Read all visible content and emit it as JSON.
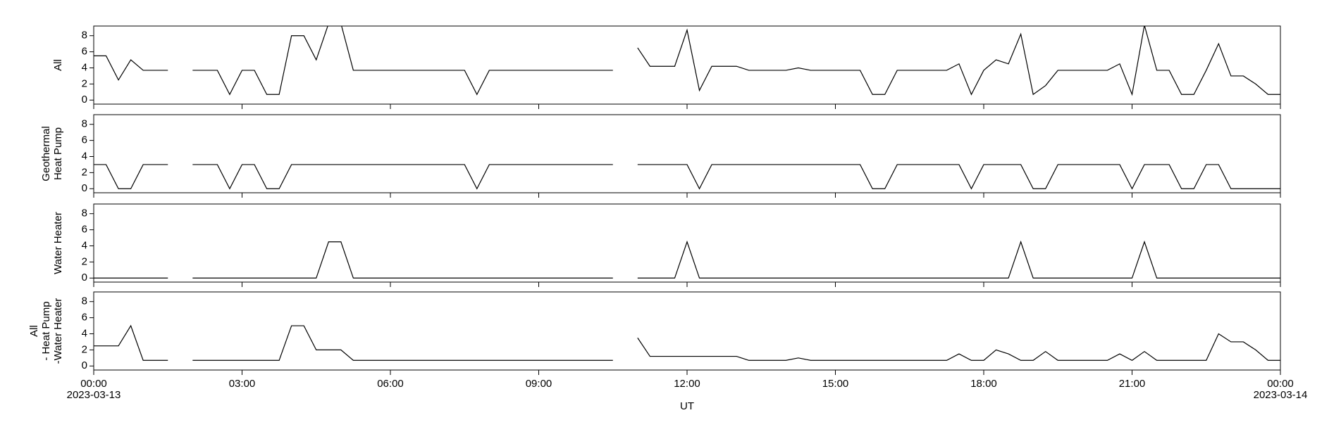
{
  "chart_data": {
    "type": "line",
    "subplots": true,
    "x": [
      0,
      0.25,
      0.5,
      0.75,
      1,
      1.25,
      1.5,
      1.75,
      2,
      2.25,
      2.5,
      2.75,
      3,
      3.25,
      3.5,
      3.75,
      4,
      4.25,
      4.5,
      4.75,
      5,
      5.25,
      5.5,
      5.75,
      6,
      6.25,
      6.5,
      6.75,
      7,
      7.25,
      7.5,
      7.75,
      8,
      8.25,
      8.5,
      8.75,
      9,
      9.25,
      9.5,
      9.75,
      10,
      10.25,
      10.5,
      10.75,
      11,
      11.25,
      11.5,
      11.75,
      12,
      12.25,
      12.5,
      12.75,
      13,
      13.25,
      13.5,
      13.75,
      14,
      14.25,
      14.5,
      14.75,
      15,
      15.25,
      15.5,
      15.75,
      16,
      16.25,
      16.5,
      16.75,
      17,
      17.25,
      17.5,
      17.75,
      18,
      18.25,
      18.5,
      18.75,
      19,
      19.25,
      19.5,
      19.75,
      20,
      20.25,
      20.5,
      20.75,
      21,
      21.25,
      21.5,
      21.75,
      22,
      22.25,
      22.5,
      22.75,
      23,
      23.25,
      23.5,
      23.75,
      24
    ],
    "xlim": [
      0,
      24
    ],
    "xticks": [
      {
        "value": 0,
        "label": "00:00"
      },
      {
        "value": 3,
        "label": "03:00"
      },
      {
        "value": 6,
        "label": "06:00"
      },
      {
        "value": 9,
        "label": "09:00"
      },
      {
        "value": 12,
        "label": "12:00"
      },
      {
        "value": 15,
        "label": "15:00"
      },
      {
        "value": 18,
        "label": "18:00"
      },
      {
        "value": 21,
        "label": "21:00"
      },
      {
        "value": 24,
        "label": "00:00"
      }
    ],
    "date_labels": [
      {
        "value": 0,
        "label": "2023-03-13"
      },
      {
        "value": 24,
        "label": "2023-03-14"
      }
    ],
    "xlabel": "UT",
    "ylim": [
      -0.5,
      9.2
    ],
    "yticks": [
      0,
      2,
      4,
      6,
      8
    ],
    "grid": false,
    "series": [
      {
        "ylabel": [
          "All"
        ],
        "color": "#000000",
        "values": [
          5.5,
          5.5,
          2.5,
          5,
          3.7,
          3.7,
          3.7,
          null,
          3.7,
          3.7,
          3.7,
          0.7,
          3.7,
          3.7,
          0.7,
          0.7,
          8,
          8,
          5,
          9.5,
          9.5,
          3.7,
          3.7,
          3.7,
          3.7,
          3.7,
          3.7,
          3.7,
          3.7,
          3.7,
          3.7,
          0.7,
          3.7,
          3.7,
          3.7,
          3.7,
          3.7,
          3.7,
          3.7,
          3.7,
          3.7,
          3.7,
          3.7,
          null,
          6.5,
          4.2,
          4.2,
          4.2,
          8.7,
          1.2,
          4.2,
          4.2,
          4.2,
          3.7,
          3.7,
          3.7,
          3.7,
          4,
          3.7,
          3.7,
          3.7,
          3.7,
          3.7,
          0.7,
          0.7,
          3.7,
          3.7,
          3.7,
          3.7,
          3.7,
          4.5,
          0.7,
          3.7,
          5,
          4.5,
          8.2,
          0.7,
          1.8,
          3.7,
          3.7,
          3.7,
          3.7,
          3.7,
          4.5,
          0.7,
          9.3,
          3.7,
          3.7,
          0.7,
          0.7,
          3.7,
          7,
          3,
          3,
          2,
          0.7,
          0.7
        ]
      },
      {
        "ylabel": [
          "Geothermal",
          "Heat Pump"
        ],
        "color": "#000000",
        "values": [
          3,
          3,
          0,
          0,
          3,
          3,
          3,
          null,
          3,
          3,
          3,
          0,
          3,
          3,
          0,
          0,
          3,
          3,
          3,
          3,
          3,
          3,
          3,
          3,
          3,
          3,
          3,
          3,
          3,
          3,
          3,
          0,
          3,
          3,
          3,
          3,
          3,
          3,
          3,
          3,
          3,
          3,
          3,
          null,
          3,
          3,
          3,
          3,
          3,
          0,
          3,
          3,
          3,
          3,
          3,
          3,
          3,
          3,
          3,
          3,
          3,
          3,
          3,
          0,
          0,
          3,
          3,
          3,
          3,
          3,
          3,
          0,
          3,
          3,
          3,
          3,
          0,
          0,
          3,
          3,
          3,
          3,
          3,
          3,
          0,
          3,
          3,
          3,
          0,
          0,
          3,
          3,
          0,
          0,
          0,
          0,
          0
        ]
      },
      {
        "ylabel": [
          "Water Heater"
        ],
        "color": "#000000",
        "values": [
          0,
          0,
          0,
          0,
          0,
          0,
          0,
          null,
          0,
          0,
          0,
          0,
          0,
          0,
          0,
          0,
          0,
          0,
          0,
          4.5,
          4.5,
          0,
          0,
          0,
          0,
          0,
          0,
          0,
          0,
          0,
          0,
          0,
          0,
          0,
          0,
          0,
          0,
          0,
          0,
          0,
          0,
          0,
          0,
          null,
          0,
          0,
          0,
          0,
          4.5,
          0,
          0,
          0,
          0,
          0,
          0,
          0,
          0,
          0,
          0,
          0,
          0,
          0,
          0,
          0,
          0,
          0,
          0,
          0,
          0,
          0,
          0,
          0,
          0,
          0,
          0,
          4.5,
          0,
          0,
          0,
          0,
          0,
          0,
          0,
          0,
          0,
          4.5,
          0,
          0,
          0,
          0,
          0,
          0,
          0,
          0,
          0,
          0,
          0
        ]
      },
      {
        "ylabel": [
          "All",
          "- Heat Pump",
          "-Water Heater"
        ],
        "color": "#000000",
        "values": [
          2.5,
          2.5,
          2.5,
          5,
          0.7,
          0.7,
          0.7,
          null,
          0.7,
          0.7,
          0.7,
          0.7,
          0.7,
          0.7,
          0.7,
          0.7,
          5,
          5,
          2,
          2,
          2,
          0.7,
          0.7,
          0.7,
          0.7,
          0.7,
          0.7,
          0.7,
          0.7,
          0.7,
          0.7,
          0.7,
          0.7,
          0.7,
          0.7,
          0.7,
          0.7,
          0.7,
          0.7,
          0.7,
          0.7,
          0.7,
          0.7,
          null,
          3.5,
          1.2,
          1.2,
          1.2,
          1.2,
          1.2,
          1.2,
          1.2,
          1.2,
          0.7,
          0.7,
          0.7,
          0.7,
          1,
          0.7,
          0.7,
          0.7,
          0.7,
          0.7,
          0.7,
          0.7,
          0.7,
          0.7,
          0.7,
          0.7,
          0.7,
          1.5,
          0.7,
          0.7,
          2,
          1.5,
          0.7,
          0.7,
          1.8,
          0.7,
          0.7,
          0.7,
          0.7,
          0.7,
          1.5,
          0.7,
          1.8,
          0.7,
          0.7,
          0.7,
          0.7,
          0.7,
          4,
          3,
          3,
          2,
          0.7,
          0.7
        ]
      }
    ]
  }
}
